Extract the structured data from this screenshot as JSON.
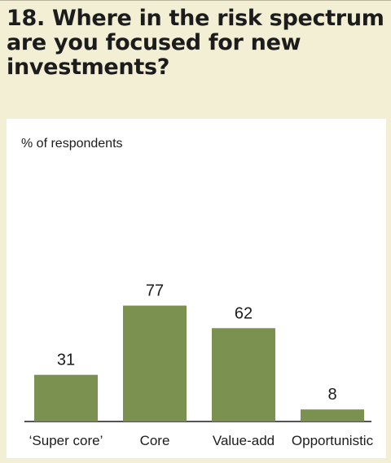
{
  "title_lines": [
    "18. Where in the risk spectrum",
    "are you focused for new",
    "investments?"
  ],
  "chart_data": {
    "type": "bar",
    "ylabel": "% of respondents",
    "categories": [
      "‘Super core’",
      "Core",
      "Value-add",
      "Opportunistic"
    ],
    "values": [
      31,
      77,
      62,
      8
    ],
    "data_labels": [
      "31",
      "77",
      "62",
      "8"
    ],
    "ylim": [
      0,
      100
    ],
    "grid": false,
    "bar_color": "#7b9150"
  }
}
